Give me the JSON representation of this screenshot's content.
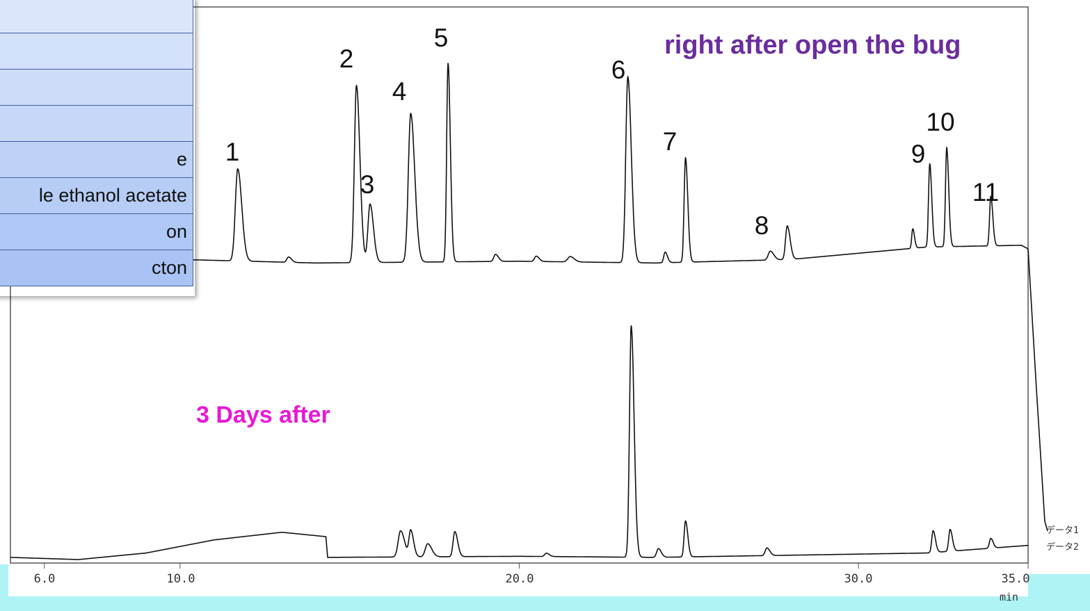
{
  "chart_data": {
    "type": "line",
    "xlabel": "min",
    "xlim": [
      5.0,
      35.0
    ],
    "x_ticks": [
      "6.0",
      "10.0",
      "20.0",
      "30.0",
      "35.0"
    ],
    "grid": false,
    "series": [
      {
        "name": "データ1",
        "annotation": "right after open the bug",
        "baseline": [
          [
            5.0,
            0.02
          ],
          [
            8.0,
            0.03
          ],
          [
            10.0,
            0.05
          ],
          [
            14.0,
            0.03
          ],
          [
            20.0,
            0.04
          ],
          [
            24.0,
            0.03
          ],
          [
            28.0,
            0.05
          ],
          [
            32.0,
            0.12
          ],
          [
            34.8,
            0.13
          ],
          [
            35.0,
            0.11
          ]
        ],
        "peaks": [
          {
            "x": 11.7,
            "h": 0.52,
            "w": 0.07
          },
          {
            "x": 13.2,
            "h": 0.03,
            "w": 0.05
          },
          {
            "x": 15.2,
            "h": 1.0,
            "w": 0.06
          },
          {
            "x": 15.6,
            "h": 0.33,
            "w": 0.06
          },
          {
            "x": 16.8,
            "h": 0.84,
            "w": 0.07
          },
          {
            "x": 17.9,
            "h": 1.12,
            "w": 0.04
          },
          {
            "x": 19.3,
            "h": 0.04,
            "w": 0.05
          },
          {
            "x": 20.5,
            "h": 0.03,
            "w": 0.05
          },
          {
            "x": 21.5,
            "h": 0.03,
            "w": 0.07
          },
          {
            "x": 23.2,
            "h": 1.05,
            "w": 0.06
          },
          {
            "x": 24.3,
            "h": 0.06,
            "w": 0.04
          },
          {
            "x": 24.9,
            "h": 0.59,
            "w": 0.04
          },
          {
            "x": 27.4,
            "h": 0.05,
            "w": 0.06
          },
          {
            "x": 27.9,
            "h": 0.19,
            "w": 0.05
          },
          {
            "x": 31.6,
            "h": 0.11,
            "w": 0.03
          },
          {
            "x": 32.1,
            "h": 0.47,
            "w": 0.035
          },
          {
            "x": 32.6,
            "h": 0.56,
            "w": 0.035
          },
          {
            "x": 33.9,
            "h": 0.28,
            "w": 0.035
          }
        ]
      },
      {
        "name": "データ2",
        "annotation": "3 Days after",
        "baseline": [
          [
            5.0,
            0.02
          ],
          [
            7.0,
            0.0
          ],
          [
            9.0,
            0.06
          ],
          [
            11.0,
            0.18
          ],
          [
            13.0,
            0.25
          ],
          [
            14.3,
            0.21
          ],
          [
            14.35,
            0.02
          ],
          [
            20.0,
            0.03
          ],
          [
            24.0,
            0.02
          ],
          [
            28.0,
            0.04
          ],
          [
            32.0,
            0.06
          ],
          [
            35.0,
            0.13
          ]
        ],
        "peaks": [
          {
            "x": 16.5,
            "h": 0.24,
            "w": 0.07
          },
          {
            "x": 16.8,
            "h": 0.24,
            "w": 0.05
          },
          {
            "x": 17.3,
            "h": 0.12,
            "w": 0.07
          },
          {
            "x": 18.1,
            "h": 0.23,
            "w": 0.05
          },
          {
            "x": 20.8,
            "h": 0.03,
            "w": 0.05
          },
          {
            "x": 23.3,
            "h": 2.12,
            "w": 0.05
          },
          {
            "x": 24.1,
            "h": 0.08,
            "w": 0.05
          },
          {
            "x": 24.9,
            "h": 0.33,
            "w": 0.04
          },
          {
            "x": 27.3,
            "h": 0.07,
            "w": 0.05
          },
          {
            "x": 32.2,
            "h": 0.2,
            "w": 0.04
          },
          {
            "x": 32.7,
            "h": 0.2,
            "w": 0.04
          },
          {
            "x": 33.9,
            "h": 0.09,
            "w": 0.04
          }
        ]
      }
    ],
    "peak_labels": [
      {
        "label": "1",
        "x": 11.5
      },
      {
        "label": "2",
        "x": 14.9
      },
      {
        "label": "3",
        "x": 15.2
      },
      {
        "label": "4",
        "x": 16.2
      },
      {
        "label": "5",
        "x": 18.0
      },
      {
        "label": "6",
        "x": 23.0
      },
      {
        "label": "7",
        "x": 24.4
      },
      {
        "label": "8",
        "x": 27.3
      },
      {
        "label": "9",
        "x": 31.7
      },
      {
        "label": "10",
        "x": 32.2
      },
      {
        "label": "11",
        "x": 33.6
      }
    ]
  },
  "legend": {
    "rows": [
      "",
      "",
      "",
      "",
      "e",
      "le ethanol acetate",
      "on",
      "cton"
    ]
  },
  "annotations": {
    "top": "right after open the bug",
    "bottom": "3 Days after"
  },
  "axis": {
    "unit": "min",
    "trace1": "データ1",
    "trace2": "データ2"
  },
  "colors": {
    "trace": "#111111",
    "annot_top": "#6a2d9e",
    "annot_bottom": "#e619d6",
    "legend_light": "#dbe6fb",
    "legend_dark": "#a9c3f4",
    "accent_strip": "#aef3f5"
  }
}
